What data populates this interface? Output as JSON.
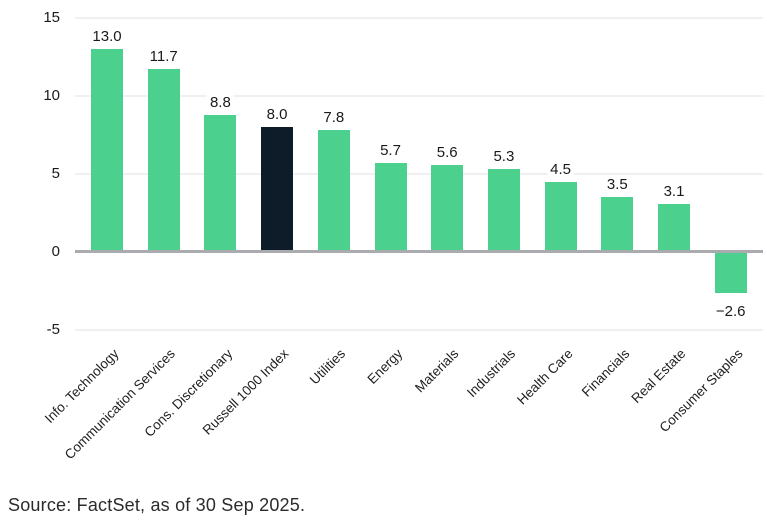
{
  "chart_data": {
    "type": "bar",
    "title": "",
    "xlabel": "",
    "ylabel": "",
    "categories": [
      "Info. Technology",
      "Communication Services",
      "Cons. Discretionary",
      "Russell 1000 Index",
      "Utilities",
      "Energy",
      "Materials",
      "Industrials",
      "Health Care",
      "Financials",
      "Real Estate",
      "Consumer Staples"
    ],
    "values": [
      13.0,
      11.7,
      8.8,
      8.0,
      7.8,
      5.7,
      5.6,
      5.3,
      4.5,
      3.5,
      3.1,
      -2.6
    ],
    "value_labels": [
      "13.0",
      "11.7",
      "8.8",
      "8.0",
      "7.8",
      "5.7",
      "5.6",
      "5.3",
      "4.5",
      "3.5",
      "3.1",
      "−2.6"
    ],
    "highlight_category": "Russell 1000 Index",
    "yticks": [
      15,
      10,
      5,
      0,
      -5
    ],
    "ytick_labels": [
      "15",
      "10",
      "5",
      "0",
      "-5"
    ],
    "ylim": [
      -5,
      15
    ],
    "grid": "horizontal",
    "legend_position": "none",
    "colors": {
      "bar": "#4BD08E",
      "highlight_bar": "#0E1C2A",
      "gridline": "#EFF0F2",
      "zero_line": "#A9ABAE",
      "value_label": "#1A1A1A",
      "tick_label": "#1A1A1A",
      "category_label": "#1F1F1F"
    }
  },
  "footer": {
    "source": "Source: FactSet, as of 30 Sep 2025."
  }
}
